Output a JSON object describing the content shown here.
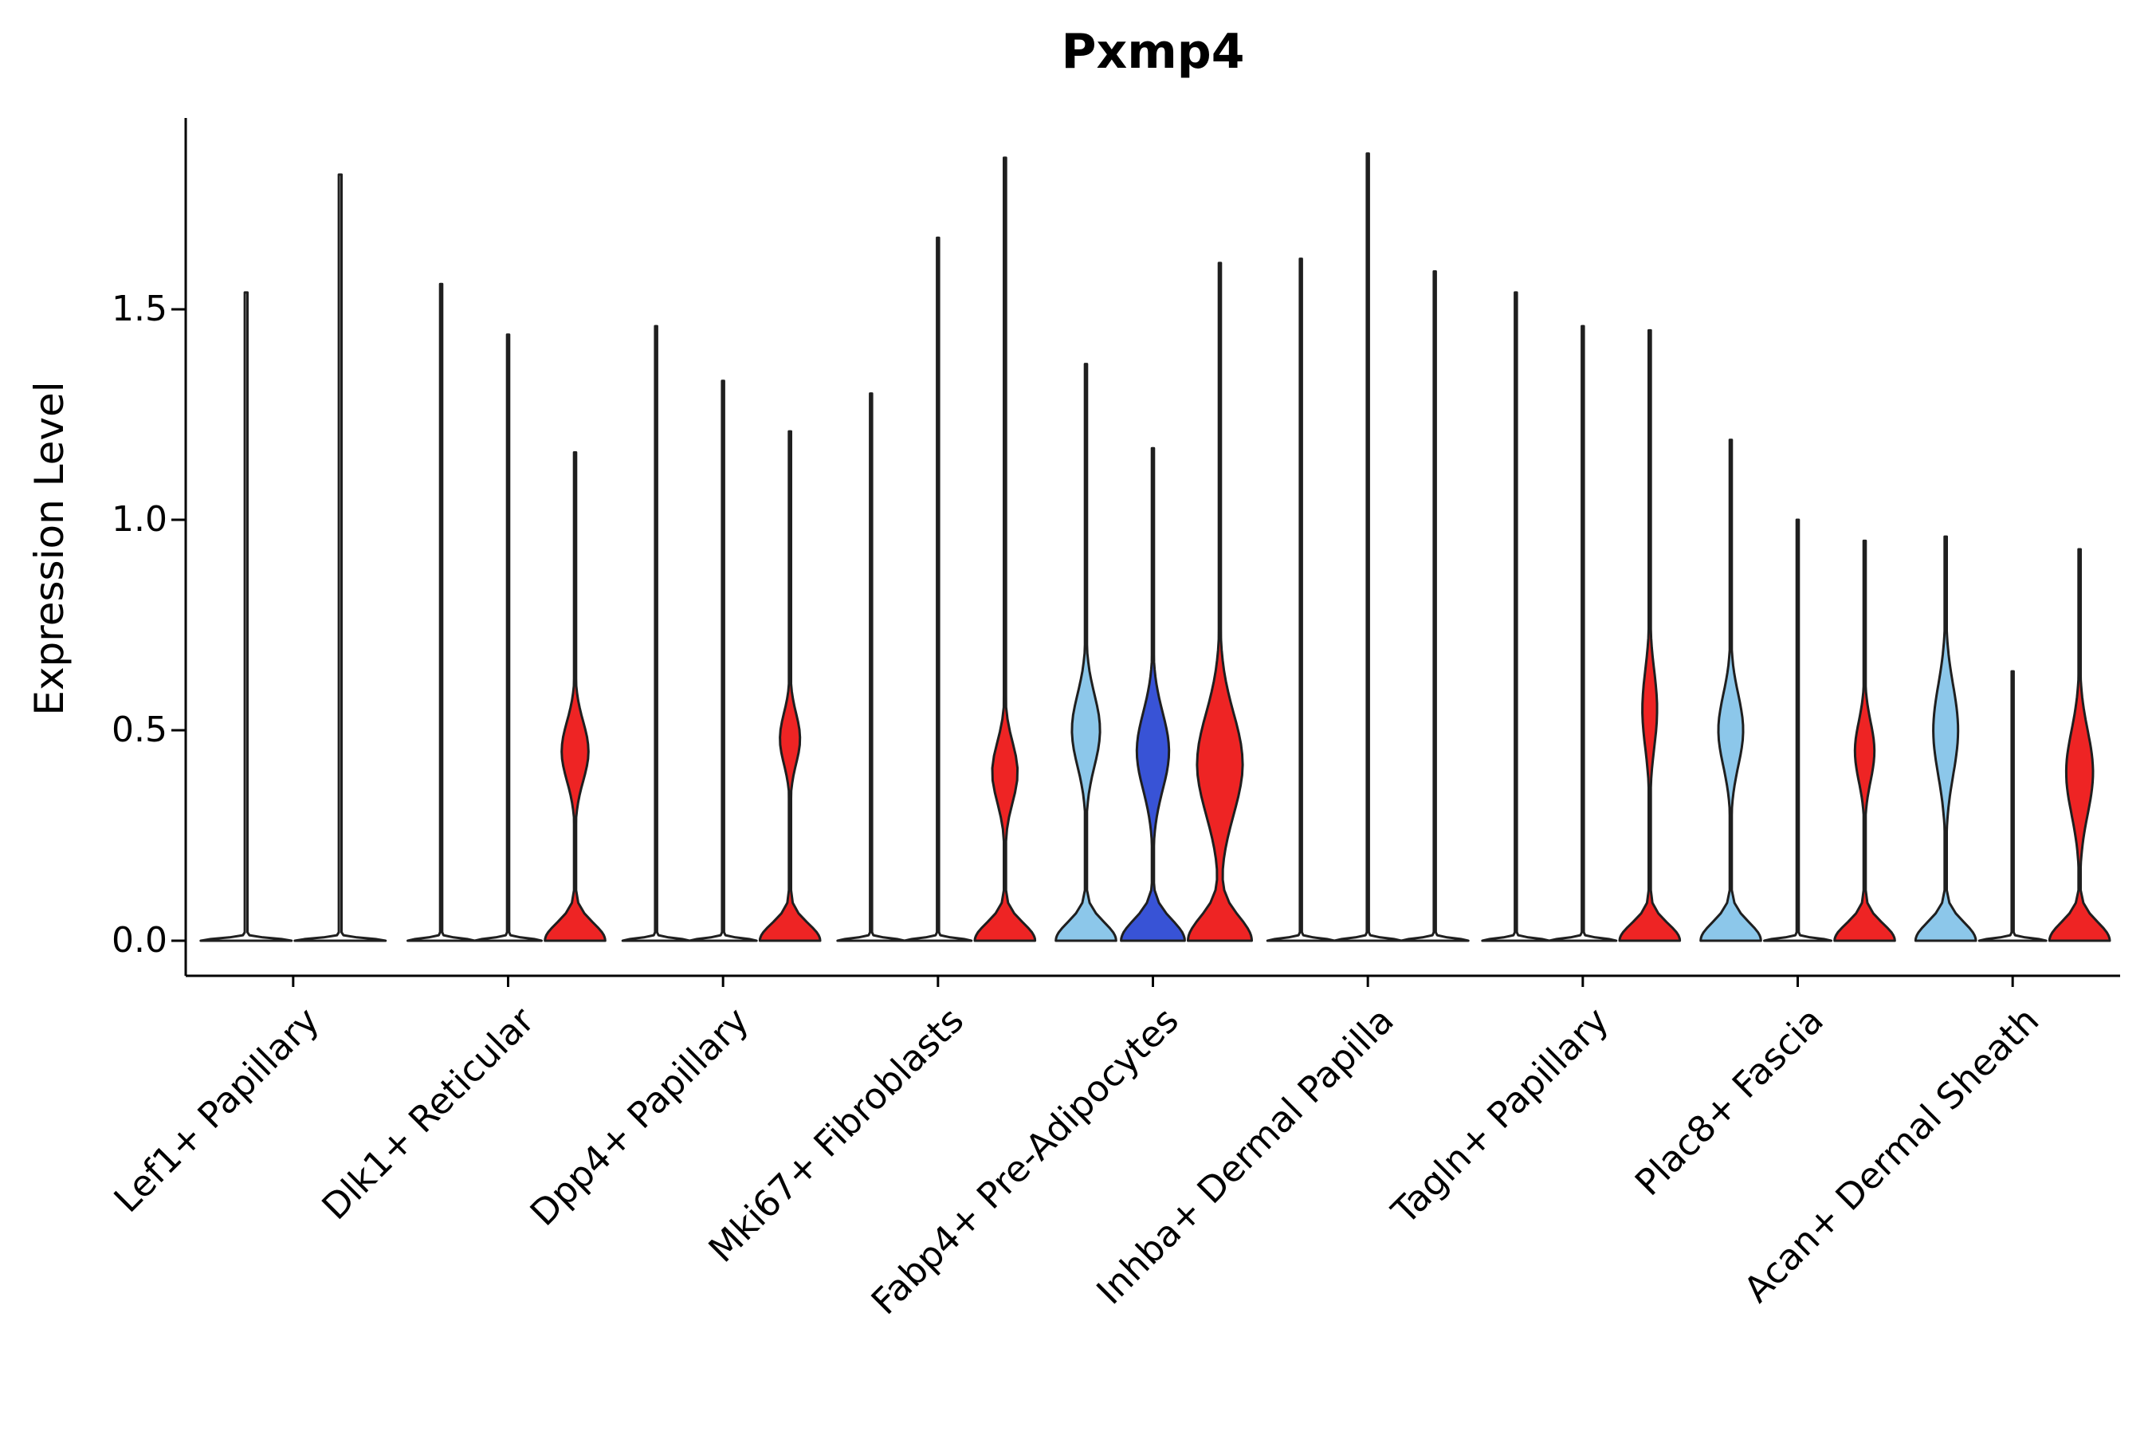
{
  "chart_data": {
    "type": "violin",
    "title": "Pxmp4",
    "ylabel": "Expression Level",
    "xlabel": "",
    "ylim": [
      -0.083,
      1.95
    ],
    "grid": false,
    "legend": "none",
    "yticks": [
      {
        "value": 0.0,
        "label": "0.0"
      },
      {
        "value": 0.5,
        "label": "0.5"
      },
      {
        "value": 1.0,
        "label": "1.0"
      },
      {
        "value": 1.5,
        "label": "1.5"
      }
    ],
    "categories": [
      "Lef1+ Papillary",
      "Dlk1+ Reticular",
      "Dpp4+ Papillary",
      "Mki67+ Fibroblasts",
      "Fabp4+ Pre-Adipocytes",
      "Inhba+ Dermal Papilla",
      "Tagln+ Papillary",
      "Plac8+ Fascia",
      "Acan+ Dermal Sheath"
    ],
    "palette": {
      "red": "#ee2424",
      "light_blue": "#8cc7ea",
      "dark_blue": "#3853d6",
      "none": "#ffffff",
      "outline": "#1f1f1f",
      "axis": "#000000"
    },
    "violins": [
      {
        "category": 0,
        "pos": 0,
        "n": 2,
        "fill": "none",
        "max": 1.54,
        "base_w": 1.0,
        "base_sigma": 0.008,
        "bulge_w": 0,
        "bulge_c": 0,
        "bulge_s": 1,
        "spike_w": 0.03
      },
      {
        "category": 0,
        "pos": 1,
        "n": 2,
        "fill": "none",
        "max": 1.82,
        "base_w": 1.0,
        "base_sigma": 0.008,
        "bulge_w": 0,
        "bulge_c": 0,
        "bulge_s": 1,
        "spike_w": 0.03
      },
      {
        "category": 1,
        "pos": 0,
        "n": 3,
        "fill": "none",
        "max": 1.56,
        "base_w": 1.0,
        "base_sigma": 0.008,
        "bulge_w": 0,
        "bulge_c": 0,
        "bulge_s": 1,
        "spike_w": 0.03
      },
      {
        "category": 1,
        "pos": 1,
        "n": 3,
        "fill": "none",
        "max": 1.44,
        "base_w": 1.0,
        "base_sigma": 0.008,
        "bulge_w": 0,
        "bulge_c": 0,
        "bulge_s": 1,
        "spike_w": 0.03
      },
      {
        "category": 1,
        "pos": 2,
        "n": 3,
        "fill": "red",
        "max": 1.16,
        "base_w": 0.9,
        "base_sigma": 0.06,
        "bulge_w": 0.4,
        "bulge_c": 0.45,
        "bulge_s": 0.1,
        "spike_w": 0.032
      },
      {
        "category": 2,
        "pos": 0,
        "n": 3,
        "fill": "none",
        "max": 1.46,
        "base_w": 1.0,
        "base_sigma": 0.008,
        "bulge_w": 0,
        "bulge_c": 0,
        "bulge_s": 1,
        "spike_w": 0.03
      },
      {
        "category": 2,
        "pos": 1,
        "n": 3,
        "fill": "none",
        "max": 1.33,
        "base_w": 1.0,
        "base_sigma": 0.008,
        "bulge_w": 0,
        "bulge_c": 0,
        "bulge_s": 1,
        "spike_w": 0.03
      },
      {
        "category": 2,
        "pos": 2,
        "n": 3,
        "fill": "red",
        "max": 1.21,
        "base_w": 0.9,
        "base_sigma": 0.058,
        "bulge_w": 0.3,
        "bulge_c": 0.48,
        "bulge_s": 0.085,
        "spike_w": 0.032
      },
      {
        "category": 3,
        "pos": 0,
        "n": 3,
        "fill": "none",
        "max": 1.3,
        "base_w": 1.0,
        "base_sigma": 0.008,
        "bulge_w": 0,
        "bulge_c": 0,
        "bulge_s": 1,
        "spike_w": 0.03
      },
      {
        "category": 3,
        "pos": 1,
        "n": 3,
        "fill": "none",
        "max": 1.67,
        "base_w": 1.0,
        "base_sigma": 0.008,
        "bulge_w": 0,
        "bulge_c": 0,
        "bulge_s": 1,
        "spike_w": 0.03
      },
      {
        "category": 3,
        "pos": 2,
        "n": 3,
        "fill": "red",
        "max": 1.86,
        "base_w": 0.9,
        "base_sigma": 0.06,
        "bulge_w": 0.38,
        "bulge_c": 0.4,
        "bulge_s": 0.1,
        "spike_w": 0.032
      },
      {
        "category": 4,
        "pos": 0,
        "n": 3,
        "fill": "light_blue",
        "max": 1.37,
        "base_w": 0.9,
        "base_sigma": 0.062,
        "bulge_w": 0.42,
        "bulge_c": 0.5,
        "bulge_s": 0.12,
        "spike_w": 0.032
      },
      {
        "category": 4,
        "pos": 1,
        "n": 3,
        "fill": "dark_blue",
        "max": 1.17,
        "base_w": 0.95,
        "base_sigma": 0.07,
        "bulge_w": 0.48,
        "bulge_c": 0.45,
        "bulge_s": 0.13,
        "spike_w": 0.032
      },
      {
        "category": 4,
        "pos": 2,
        "n": 3,
        "fill": "red",
        "max": 1.61,
        "base_w": 0.95,
        "base_sigma": 0.08,
        "bulge_w": 0.68,
        "bulge_c": 0.42,
        "bulge_s": 0.17,
        "spike_w": 0.032
      },
      {
        "category": 5,
        "pos": 0,
        "n": 3,
        "fill": "none",
        "max": 1.62,
        "base_w": 1.0,
        "base_sigma": 0.008,
        "bulge_w": 0,
        "bulge_c": 0,
        "bulge_s": 1,
        "spike_w": 0.03
      },
      {
        "category": 5,
        "pos": 1,
        "n": 3,
        "fill": "none",
        "max": 1.87,
        "base_w": 1.0,
        "base_sigma": 0.008,
        "bulge_w": 0,
        "bulge_c": 0,
        "bulge_s": 1,
        "spike_w": 0.03
      },
      {
        "category": 5,
        "pos": 2,
        "n": 3,
        "fill": "none",
        "max": 1.59,
        "base_w": 1.0,
        "base_sigma": 0.008,
        "bulge_w": 0,
        "bulge_c": 0,
        "bulge_s": 1,
        "spike_w": 0.03
      },
      {
        "category": 6,
        "pos": 0,
        "n": 3,
        "fill": "none",
        "max": 1.54,
        "base_w": 1.0,
        "base_sigma": 0.008,
        "bulge_w": 0,
        "bulge_c": 0,
        "bulge_s": 1,
        "spike_w": 0.03
      },
      {
        "category": 6,
        "pos": 1,
        "n": 3,
        "fill": "none",
        "max": 1.46,
        "base_w": 1.0,
        "base_sigma": 0.008,
        "bulge_w": 0,
        "bulge_c": 0,
        "bulge_s": 1,
        "spike_w": 0.03
      },
      {
        "category": 6,
        "pos": 2,
        "n": 3,
        "fill": "red",
        "max": 1.45,
        "base_w": 0.9,
        "base_sigma": 0.058,
        "bulge_w": 0.22,
        "bulge_c": 0.55,
        "bulge_s": 0.13,
        "spike_w": 0.032
      },
      {
        "category": 7,
        "pos": 0,
        "n": 3,
        "fill": "light_blue",
        "max": 1.19,
        "base_w": 0.9,
        "base_sigma": 0.062,
        "bulge_w": 0.37,
        "bulge_c": 0.5,
        "bulge_s": 0.12,
        "spike_w": 0.032
      },
      {
        "category": 7,
        "pos": 1,
        "n": 3,
        "fill": "none",
        "max": 1.0,
        "base_w": 1.0,
        "base_sigma": 0.008,
        "bulge_w": 0,
        "bulge_c": 0,
        "bulge_s": 1,
        "spike_w": 0.03
      },
      {
        "category": 7,
        "pos": 2,
        "n": 3,
        "fill": "red",
        "max": 0.95,
        "base_w": 0.9,
        "base_sigma": 0.058,
        "bulge_w": 0.29,
        "bulge_c": 0.45,
        "bulge_s": 0.1,
        "spike_w": 0.032
      },
      {
        "category": 8,
        "pos": 0,
        "n": 3,
        "fill": "light_blue",
        "max": 0.96,
        "base_w": 0.9,
        "base_sigma": 0.062,
        "bulge_w": 0.37,
        "bulge_c": 0.5,
        "bulge_s": 0.15,
        "spike_w": 0.032
      },
      {
        "category": 8,
        "pos": 1,
        "n": 3,
        "fill": "none",
        "max": 0.64,
        "base_w": 1.0,
        "base_sigma": 0.008,
        "bulge_w": 0,
        "bulge_c": 0,
        "bulge_s": 1,
        "spike_w": 0.03
      },
      {
        "category": 8,
        "pos": 2,
        "n": 3,
        "fill": "red",
        "max": 0.93,
        "base_w": 0.9,
        "base_sigma": 0.062,
        "bulge_w": 0.4,
        "bulge_c": 0.4,
        "bulge_s": 0.14,
        "spike_w": 0.032
      }
    ]
  }
}
